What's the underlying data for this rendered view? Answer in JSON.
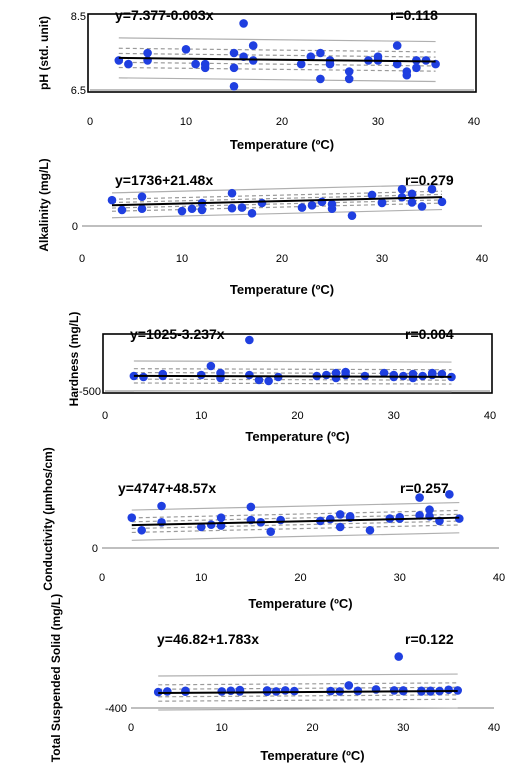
{
  "chart_data": [
    {
      "type": "scatter",
      "equation": "y=7.377-0.003x",
      "r_label": "r=0.118",
      "xlabel": "Temperature (ºC)",
      "ylabel": "pH (std. unit)",
      "xlim": [
        0,
        40
      ],
      "ylim": [
        6.5,
        8.5
      ],
      "xticks": [
        "0",
        "10",
        "20",
        "30",
        "40"
      ],
      "yticks": [
        {
          "value": 6.5,
          "label": "6.5"
        },
        {
          "value": 8.5,
          "label": "8.5"
        }
      ],
      "framed": true,
      "intercept": 7.377,
      "slope": -0.003,
      "x": [
        3,
        4,
        6,
        6,
        10,
        11,
        12,
        12,
        15,
        15,
        15,
        16,
        16,
        17,
        17,
        22,
        23,
        24,
        24,
        25,
        25,
        27,
        27,
        29,
        30,
        30,
        32,
        32,
        33,
        33,
        34,
        34,
        35,
        36
      ],
      "y": [
        7.3,
        7.2,
        7.5,
        7.3,
        7.6,
        7.2,
        7.1,
        7.2,
        7.5,
        7.1,
        6.6,
        8.3,
        7.4,
        7.7,
        7.3,
        7.2,
        7.4,
        7.5,
        6.8,
        7.3,
        7.2,
        6.8,
        7.0,
        7.3,
        7.4,
        7.3,
        7.7,
        7.2,
        7.0,
        6.9,
        7.3,
        7.1,
        7.3,
        7.2
      ]
    },
    {
      "type": "scatter",
      "equation": "y=1736+21.48x",
      "r_label": "r=0.279",
      "xlabel": "Temperature (ºC)",
      "ylabel": "Alkalinity (mg/L)",
      "xlim": [
        0,
        40
      ],
      "ylim": [
        0,
        4000
      ],
      "xticks": [
        "0",
        "10",
        "20",
        "30",
        "40"
      ],
      "yticks": [
        {
          "value": 0,
          "label": "0"
        }
      ],
      "framed": false,
      "intercept": 1736,
      "slope": 21.48,
      "x": [
        3,
        4,
        6,
        6,
        10,
        11,
        12,
        12,
        15,
        15,
        16,
        17,
        18,
        22,
        23,
        24,
        25,
        25,
        27,
        29,
        30,
        30,
        32,
        32,
        33,
        33,
        34,
        35,
        36
      ],
      "y": [
        2250,
        1400,
        2550,
        1500,
        1300,
        1500,
        2000,
        1400,
        2850,
        1550,
        1600,
        1100,
        2000,
        1600,
        1800,
        2100,
        1500,
        1900,
        900,
        2700,
        2050,
        2000,
        3200,
        2500,
        2050,
        2800,
        1700,
        3200,
        2100
      ]
    },
    {
      "type": "scatter",
      "equation": "y=1025-3.237x",
      "r_label": "r=0.004",
      "xlabel": "Temperature (ºC)",
      "ylabel": "Hardness (mg/L)",
      "xlim": [
        0,
        40
      ],
      "ylim": [
        -500,
        5000
      ],
      "xticks": [
        "0",
        "10",
        "20",
        "30",
        "40"
      ],
      "yticks": [
        {
          "value": -500,
          "label": "-500"
        }
      ],
      "framed": true,
      "intercept": 1025,
      "slope": -3.237,
      "x": [
        3,
        4,
        6,
        6,
        10,
        11,
        12,
        12,
        15,
        15,
        16,
        17,
        18,
        22,
        23,
        24,
        24,
        25,
        25,
        27,
        29,
        30,
        30,
        31,
        32,
        32,
        33,
        34,
        34,
        35,
        36
      ],
      "y": [
        1000,
        900,
        1200,
        1000,
        1100,
        2000,
        1300,
        800,
        4600,
        1100,
        600,
        500,
        900,
        1000,
        1100,
        1300,
        800,
        1400,
        1100,
        1000,
        1300,
        1100,
        900,
        1000,
        1200,
        800,
        1000,
        1300,
        1100,
        1200,
        900
      ]
    },
    {
      "type": "scatter",
      "equation": "y=4747+48.57x",
      "r_label": "r=0.257",
      "xlabel": "Temperature (ºC)",
      "ylabel": "Conductivity (µmhos/cm)",
      "xlim": [
        0,
        40
      ],
      "ylim": [
        0,
        12000
      ],
      "xticks": [
        "0",
        "10",
        "20",
        "30",
        "40"
      ],
      "yticks": [
        {
          "value": 0,
          "label": "0"
        }
      ],
      "framed": false,
      "intercept": 4747,
      "slope": 48.57,
      "x": [
        3,
        4,
        6,
        6,
        10,
        11,
        12,
        12,
        15,
        15,
        16,
        17,
        18,
        22,
        23,
        24,
        24,
        25,
        25,
        27,
        29,
        30,
        30,
        32,
        32,
        33,
        33,
        34,
        35,
        36
      ],
      "y": [
        6500,
        3800,
        9000,
        5500,
        4500,
        5000,
        6500,
        4800,
        8800,
        6000,
        5500,
        3500,
        6000,
        5800,
        6200,
        7200,
        4500,
        6800,
        6500,
        3800,
        6300,
        6300,
        6600,
        10800,
        7000,
        8200,
        6800,
        5800,
        11500,
        6300
      ]
    },
    {
      "type": "scatter",
      "equation": "y=46.82+1.783x",
      "r_label": "r=0.122",
      "xlabel": "Temperature (ºC)",
      "ylabel": "Total Suspended Solid (mg/L)",
      "xlim": [
        0,
        40
      ],
      "ylim": [
        -400,
        1500
      ],
      "xticks": [
        "0",
        "10",
        "20",
        "30",
        "40"
      ],
      "yticks": [
        {
          "value": -400,
          "label": "-400"
        }
      ],
      "framed": false,
      "intercept": 46.82,
      "slope": 1.783,
      "x": [
        3,
        4,
        6,
        6,
        10,
        11,
        12,
        12,
        15,
        15,
        16,
        17,
        18,
        22,
        23,
        24,
        25,
        25,
        27,
        29,
        29.5,
        30,
        30,
        32,
        32,
        33,
        33,
        34,
        35,
        36
      ],
      "y": [
        80,
        100,
        120,
        90,
        100,
        120,
        140,
        100,
        130,
        90,
        100,
        130,
        110,
        110,
        100,
        280,
        120,
        110,
        160,
        130,
        1150,
        130,
        110,
        120,
        100,
        100,
        120,
        110,
        150,
        130
      ]
    }
  ]
}
